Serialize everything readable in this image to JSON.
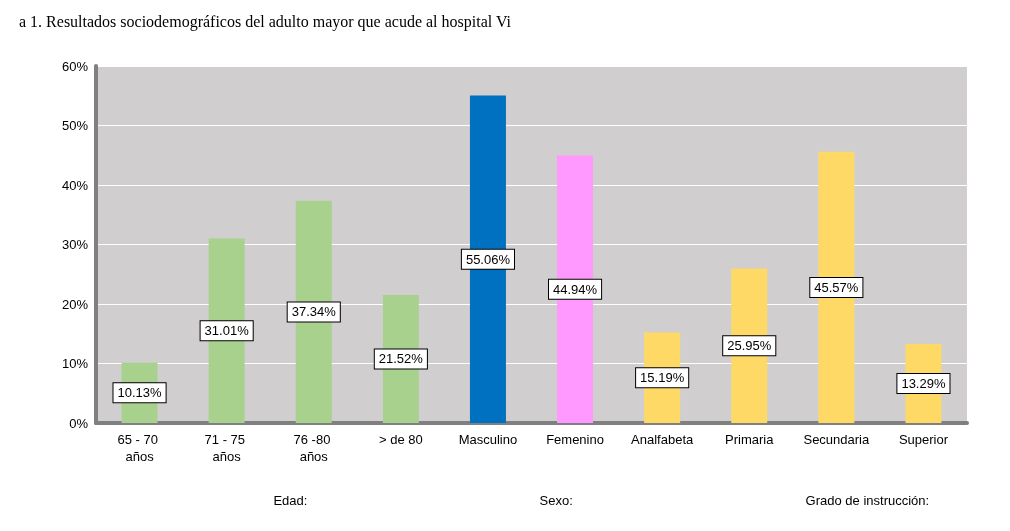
{
  "chart_data": {
    "type": "bar",
    "title": "a 1. Resultados sociodemográficos del adulto mayor que acude al hospital Vi",
    "categories": [
      "65 - 70 años",
      "71 - 75 años",
      "76 -80 años",
      "> de 80",
      "Masculino",
      "Femenino",
      "Analfabeta",
      "Primaria",
      "Secundaria",
      "Superior"
    ],
    "values": [
      10.13,
      31.01,
      37.34,
      21.52,
      55.06,
      44.94,
      15.19,
      25.95,
      45.57,
      13.29
    ],
    "colors": [
      "#a9d18e",
      "#a9d18e",
      "#a9d18e",
      "#a9d18e",
      "#0070c0",
      "#ff99ff",
      "#ffd966",
      "#ffd966",
      "#ffd966",
      "#ffd966"
    ],
    "value_labels": [
      "10.13%",
      "31.01%",
      "37.34%",
      "21.52%",
      "55.06%",
      "44.94%",
      "15.19%",
      "25.95%",
      "45.57%",
      "13.29%"
    ],
    "ylim": [
      0,
      60
    ],
    "yticks": [
      {
        "value": 0,
        "label": "0%"
      },
      {
        "value": 10,
        "label": "10%"
      },
      {
        "value": 20,
        "label": "20%"
      },
      {
        "value": 30,
        "label": "30%"
      },
      {
        "value": 40,
        "label": "40%"
      },
      {
        "value": 50,
        "label": "50%"
      },
      {
        "value": 60,
        "label": "60%"
      }
    ],
    "annotations": [
      "Edad:",
      "Sexo:",
      "Grado de instrucción:"
    ],
    "grid": "y"
  }
}
